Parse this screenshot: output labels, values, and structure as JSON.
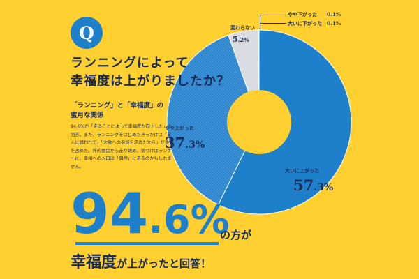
{
  "badge": "Q",
  "question": {
    "line1": "ランニングによって",
    "line2": "幸福度は上がりましたか？"
  },
  "note": {
    "title1": "「ランニング」と「幸福度」の",
    "title2": "蜜月な関係",
    "body": "94.6%が「走ることによって幸福度が向上した」と回答。また、ランニングをはじめたきっかけは「友人に誘われて」「大会への参加を決めたから」が多数を占めた。外的要因から走り始め、気づけばランナーに。幸福への入口は「偶然」にあるのかもしれません。"
  },
  "headline": {
    "pct_int": "94",
    "pct_dec": ".6",
    "pct_sign": "%",
    "suffix": "の方が",
    "result_strong": "幸福度",
    "result_rest": "が上がったと回答！"
  },
  "colors": {
    "background": "#FFD02F",
    "blue": "#1E7FCB",
    "dotted_blue": "#2C86CF",
    "gray": "#D9DDE3",
    "text": "#1A2B57"
  },
  "chart_data": {
    "type": "pie",
    "donut": true,
    "categories": [
      "大いに上がった",
      "やや上がった",
      "変わらない",
      "やや下がった",
      "大いに下がった"
    ],
    "values": [
      57.3,
      37.3,
      5.2,
      0.1,
      0.1
    ],
    "labels": [
      {
        "name": "大いに上がった",
        "int": "57",
        "dec": ".3",
        "pct": "%"
      },
      {
        "name": "やや上がった",
        "int": "37",
        "dec": ".3",
        "pct": "%"
      },
      {
        "name": "変わらない",
        "int": "5",
        "dec": ".2",
        "pct": "%"
      },
      {
        "name": "やや下がった",
        "value": "0.1%"
      },
      {
        "name": "大いに下がった",
        "value": "0.1%"
      }
    ]
  }
}
